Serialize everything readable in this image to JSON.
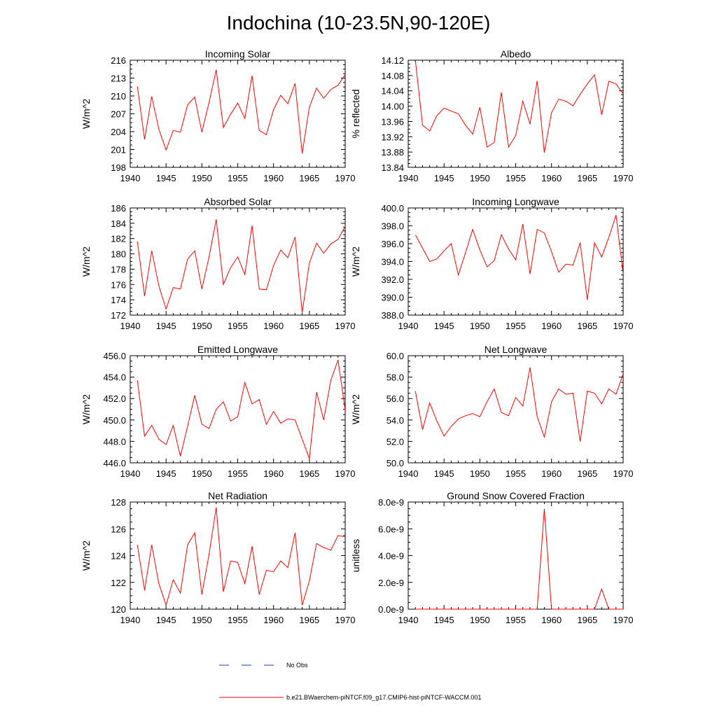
{
  "figure": {
    "title": "Indochina (10-23.5N,90-120E)",
    "legend": {
      "no_obs_label": "No Obs",
      "model_label": "b.e21.BWaerchem-piNTCF.f09_g17.CMIP6-hist-piNTCF-WACCM.001",
      "obs_color": "#1f3ca6",
      "model_color": "#ff0000"
    }
  },
  "chart_data": [
    {
      "type": "line",
      "title": "Incoming Solar",
      "ylabel": "W/m^2",
      "xlim": [
        1940,
        1970
      ],
      "ylim": [
        198,
        216
      ],
      "yticks": [
        "198",
        "201",
        "204",
        "207",
        "210",
        "213",
        "216"
      ],
      "xticks": [
        "1940",
        "1945",
        "1950",
        "1955",
        "1960",
        "1965",
        "1970"
      ],
      "x": [
        1941,
        1942,
        1943,
        1944,
        1945,
        1946,
        1947,
        1948,
        1949,
        1950,
        1951,
        1952,
        1953,
        1954,
        1955,
        1956,
        1957,
        1958,
        1959,
        1960,
        1961,
        1962,
        1963,
        1964,
        1965,
        1966,
        1967,
        1968,
        1969,
        1970
      ],
      "series": [
        {
          "color": "#ff0000",
          "values": [
            211.6,
            202.7,
            209.9,
            204.4,
            200.9,
            204.2,
            203.9,
            208.5,
            209.8,
            203.9,
            208.9,
            214.4,
            204.7,
            206.9,
            208.8,
            206.2,
            213.4,
            204.2,
            203.5,
            207.7,
            210.1,
            208.7,
            212.1,
            200.3,
            208.1,
            211.3,
            209.6,
            211.1,
            211.8,
            213.6
          ]
        }
      ]
    },
    {
      "type": "line",
      "title": "Albedo",
      "ylabel": "% reflected",
      "xlim": [
        1940,
        1970
      ],
      "ylim": [
        13.84,
        14.12
      ],
      "yticks": [
        "13.84",
        "13.88",
        "13.92",
        "13.96",
        "14.00",
        "14.04",
        "14.08",
        "14.12"
      ],
      "xticks": [
        "1940",
        "1945",
        "1950",
        "1955",
        "1960",
        "1965",
        "1970"
      ],
      "x": [
        1941,
        1942,
        1943,
        1944,
        1945,
        1946,
        1947,
        1948,
        1949,
        1950,
        1951,
        1952,
        1953,
        1954,
        1955,
        1956,
        1957,
        1958,
        1959,
        1960,
        1961,
        1962,
        1963,
        1964,
        1965,
        1966,
        1967,
        1968,
        1969,
        1970
      ],
      "series": [
        {
          "color": "#ff0000",
          "values": [
            14.12,
            13.95,
            13.935,
            13.975,
            13.995,
            13.987,
            13.98,
            13.95,
            13.927,
            13.997,
            13.893,
            13.905,
            14.036,
            13.893,
            13.923,
            14.013,
            13.953,
            14.066,
            13.878,
            13.983,
            14.018,
            14.013,
            14.001,
            14.031,
            14.058,
            14.082,
            13.977,
            14.065,
            14.058,
            14.032
          ]
        }
      ]
    },
    {
      "type": "line",
      "title": "Absorbed Solar",
      "ylabel": "W/m^2",
      "xlim": [
        1940,
        1970
      ],
      "ylim": [
        172,
        186
      ],
      "yticks": [
        "172",
        "174",
        "176",
        "178",
        "180",
        "182",
        "184",
        "186"
      ],
      "xticks": [
        "1940",
        "1945",
        "1950",
        "1955",
        "1960",
        "1965",
        "1970"
      ],
      "x": [
        1941,
        1942,
        1943,
        1944,
        1945,
        1946,
        1947,
        1948,
        1949,
        1950,
        1951,
        1952,
        1953,
        1954,
        1955,
        1956,
        1957,
        1958,
        1959,
        1960,
        1961,
        1962,
        1963,
        1964,
        1965,
        1966,
        1967,
        1968,
        1969,
        1970
      ],
      "series": [
        {
          "color": "#ff0000",
          "values": [
            181.6,
            174.5,
            180.4,
            175.8,
            172.8,
            175.6,
            175.4,
            179.3,
            180.4,
            175.4,
            179.6,
            184.5,
            176.0,
            178.2,
            179.6,
            177.3,
            183.7,
            175.4,
            175.3,
            178.5,
            180.5,
            179.5,
            182.2,
            172.3,
            178.8,
            181.4,
            180.1,
            181.3,
            181.9,
            183.6
          ]
        }
      ]
    },
    {
      "type": "line",
      "title": "Incoming Longwave",
      "ylabel": "W/m^2",
      "xlim": [
        1940,
        1970
      ],
      "ylim": [
        388.0,
        400.0
      ],
      "yticks": [
        "388.0",
        "390.0",
        "392.0",
        "394.0",
        "396.0",
        "398.0",
        "400.0"
      ],
      "xticks": [
        "1940",
        "1945",
        "1950",
        "1955",
        "1960",
        "1965",
        "1970"
      ],
      "x": [
        1941,
        1942,
        1943,
        1944,
        1945,
        1946,
        1947,
        1948,
        1949,
        1950,
        1951,
        1952,
        1953,
        1954,
        1955,
        1956,
        1957,
        1958,
        1959,
        1960,
        1961,
        1962,
        1963,
        1964,
        1965,
        1966,
        1967,
        1968,
        1969,
        1970
      ],
      "series": [
        {
          "color": "#ff0000",
          "values": [
            397.0,
            395.5,
            394.0,
            394.3,
            395.2,
            396.0,
            392.5,
            395.0,
            397.6,
            395.3,
            393.4,
            394.1,
            397.0,
            395.4,
            394.2,
            398.2,
            392.6,
            397.6,
            397.2,
            395.1,
            392.8,
            393.7,
            393.6,
            396.1,
            389.7,
            396.1,
            394.5,
            396.7,
            399.2,
            392.6
          ]
        }
      ]
    },
    {
      "type": "line",
      "title": "Emitted Longwave",
      "ylabel": "W/m^2",
      "xlim": [
        1940,
        1970
      ],
      "ylim": [
        446.0,
        456.0
      ],
      "yticks": [
        "446.0",
        "448.0",
        "450.0",
        "452.0",
        "454.0",
        "456.0"
      ],
      "xticks": [
        "1940",
        "1945",
        "1950",
        "1955",
        "1960",
        "1965",
        "1970"
      ],
      "x": [
        1941,
        1942,
        1943,
        1944,
        1945,
        1946,
        1947,
        1948,
        1949,
        1950,
        1951,
        1952,
        1953,
        1954,
        1955,
        1956,
        1957,
        1958,
        1959,
        1960,
        1961,
        1962,
        1963,
        1964,
        1965,
        1966,
        1967,
        1968,
        1969,
        1970
      ],
      "series": [
        {
          "color": "#ff0000",
          "values": [
            453.7,
            448.5,
            449.5,
            448.2,
            447.7,
            449.5,
            446.6,
            449.4,
            452.3,
            449.6,
            449.2,
            451.0,
            451.7,
            449.9,
            450.3,
            453.5,
            451.5,
            451.9,
            449.6,
            450.8,
            449.7,
            450.1,
            450.0,
            448.2,
            446.4,
            452.6,
            450.0,
            453.7,
            455.6,
            450.9
          ]
        }
      ]
    },
    {
      "type": "line",
      "title": "Net Longwave",
      "ylabel": "W/m^2",
      "xlim": [
        1940,
        1970
      ],
      "ylim": [
        50.0,
        60.0
      ],
      "yticks": [
        "50.0",
        "52.0",
        "54.0",
        "56.0",
        "58.0",
        "60.0"
      ],
      "xticks": [
        "1940",
        "1945",
        "1950",
        "1955",
        "1960",
        "1965",
        "1970"
      ],
      "x": [
        1941,
        1942,
        1943,
        1944,
        1945,
        1946,
        1947,
        1948,
        1949,
        1950,
        1951,
        1952,
        1953,
        1954,
        1955,
        1956,
        1957,
        1958,
        1959,
        1960,
        1961,
        1962,
        1963,
        1964,
        1965,
        1966,
        1967,
        1968,
        1969,
        1970
      ],
      "series": [
        {
          "color": "#ff0000",
          "values": [
            56.7,
            53.1,
            55.6,
            53.9,
            52.5,
            53.4,
            54.1,
            54.4,
            54.6,
            54.3,
            55.7,
            56.9,
            54.7,
            54.4,
            56.1,
            55.3,
            58.9,
            54.3,
            52.4,
            55.7,
            56.9,
            56.4,
            56.5,
            52.0,
            56.7,
            56.5,
            55.5,
            56.9,
            56.4,
            58.3
          ]
        }
      ]
    },
    {
      "type": "line",
      "title": "Net Radiation",
      "ylabel": "W/m^2",
      "xlim": [
        1940,
        1970
      ],
      "ylim": [
        120,
        128
      ],
      "yticks": [
        "120",
        "122",
        "124",
        "126",
        "128"
      ],
      "xticks": [
        "1940",
        "1945",
        "1950",
        "1955",
        "1960",
        "1965",
        "1970"
      ],
      "x": [
        1941,
        1942,
        1943,
        1944,
        1945,
        1946,
        1947,
        1948,
        1949,
        1950,
        1951,
        1952,
        1953,
        1954,
        1955,
        1956,
        1957,
        1958,
        1959,
        1960,
        1961,
        1962,
        1963,
        1964,
        1965,
        1966,
        1967,
        1968,
        1969,
        1970
      ],
      "series": [
        {
          "color": "#ff0000",
          "values": [
            124.8,
            121.4,
            124.8,
            121.9,
            120.3,
            122.2,
            121.2,
            124.8,
            125.7,
            121.1,
            124.1,
            127.6,
            121.3,
            123.6,
            123.5,
            121.9,
            124.7,
            121.1,
            122.9,
            122.8,
            123.6,
            123.1,
            125.7,
            120.3,
            122.1,
            124.9,
            124.6,
            124.4,
            125.5,
            125.4
          ]
        }
      ]
    },
    {
      "type": "line",
      "title": "Ground Snow Covered Fraction",
      "ylabel": "unitless",
      "xlim": [
        1940,
        1970
      ],
      "ylim": [
        0,
        8e-09
      ],
      "yticks": [
        "0.0e-9",
        "2.0e-9",
        "4.0e-9",
        "6.0e-9",
        "8.0e-9"
      ],
      "xticks": [
        "1940",
        "1945",
        "1950",
        "1955",
        "1960",
        "1965",
        "1970"
      ],
      "x": [
        1941,
        1942,
        1943,
        1944,
        1945,
        1946,
        1947,
        1948,
        1949,
        1950,
        1951,
        1952,
        1953,
        1954,
        1955,
        1956,
        1957,
        1958,
        1959,
        1960,
        1961,
        1962,
        1963,
        1964,
        1965,
        1966,
        1967,
        1968,
        1969,
        1970
      ],
      "series": [
        {
          "color": "#ff0000",
          "values": [
            0,
            0,
            0,
            0,
            0,
            0,
            0,
            0,
            0,
            0,
            0,
            0,
            0,
            0,
            0,
            0,
            0,
            0,
            7.5e-09,
            0,
            0,
            0,
            0,
            0,
            0,
            0,
            1.5e-09,
            0,
            0,
            0
          ]
        }
      ]
    }
  ]
}
